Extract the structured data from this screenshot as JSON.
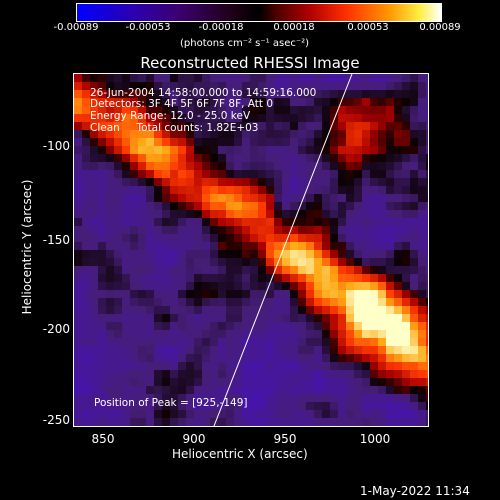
{
  "colorbar": {
    "ticks": [
      "-0.00089",
      "-0.00053",
      "-0.00018",
      "0.00018",
      "0.00053",
      "0.00089"
    ],
    "units": "(photons cm⁻² s⁻¹ asec⁻²)"
  },
  "title": "Reconstructed RHESSI Image",
  "info": {
    "time": "26-Jun-2004 14:58:00.000 to 14:59:16.000",
    "detectors": "Detectors: 3F 4F 5F 6F 7F 8F, Att 0",
    "energy": "Energy Range: 12.0 - 25.0 keV",
    "clean": "Clean     Total counts: 1.82E+03",
    "peak": "Position of Peak = [925,-149]"
  },
  "axes": {
    "xlabel": "Heliocentric X (arcsec)",
    "ylabel": "Heliocentric Y (arcsec)",
    "xticks": [
      "850",
      "900",
      "950",
      "1000"
    ],
    "yticks": [
      "-100",
      "-150",
      "-200",
      "-250"
    ]
  },
  "timestamp": "1-May-2022 11:34"
}
